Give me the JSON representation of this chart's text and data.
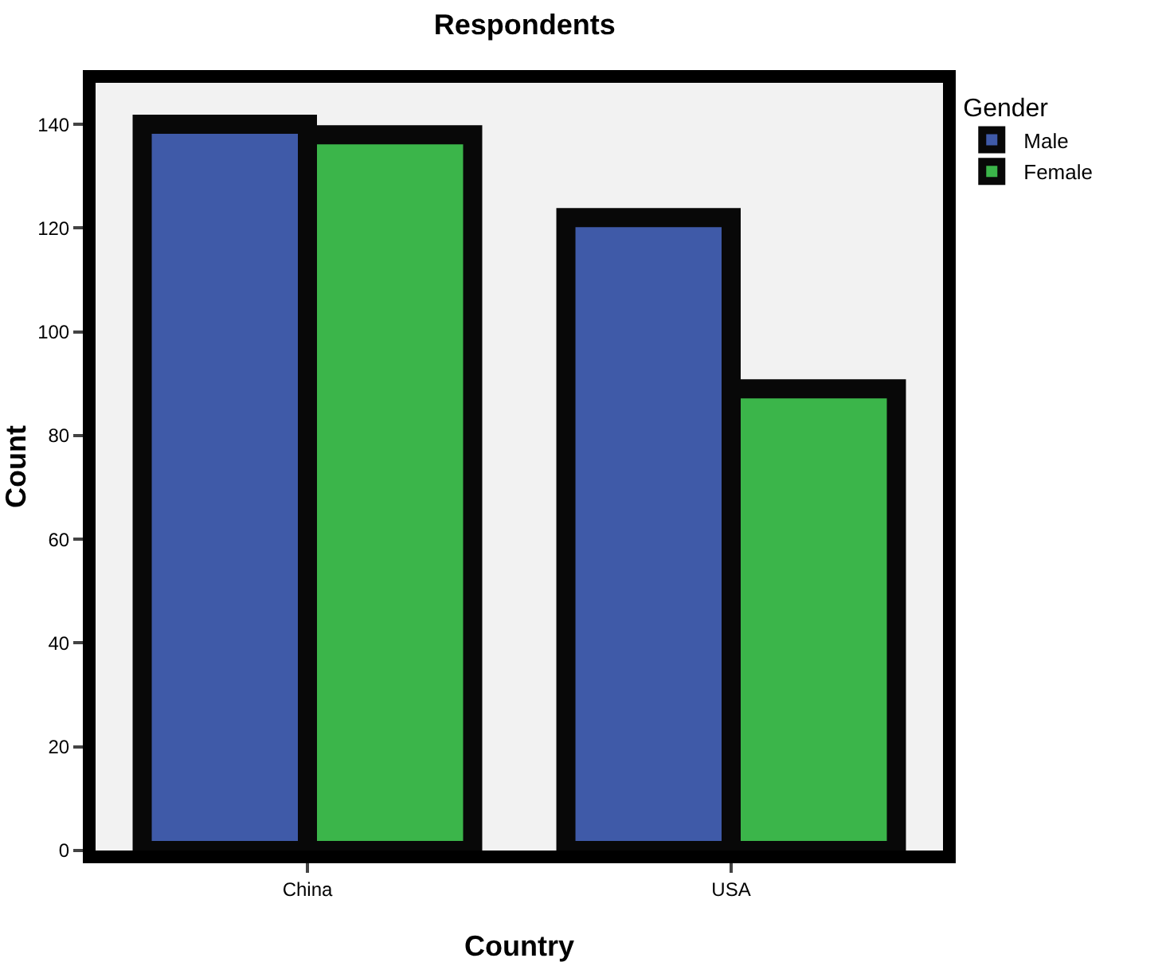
{
  "chart_data": {
    "type": "bar",
    "title": "Respondents",
    "xlabel": "Country",
    "ylabel": "Count",
    "legend_title": "Gender",
    "categories": [
      "China",
      "USA"
    ],
    "series": [
      {
        "name": "Male",
        "color": "#3f5aa8",
        "values": [
          140,
          122
        ]
      },
      {
        "name": "Female",
        "color": "#3bb54a",
        "values": [
          138,
          89
        ]
      }
    ],
    "ylim": [
      0,
      148
    ],
    "yticks": [
      0,
      20,
      40,
      60,
      80,
      100,
      120,
      140
    ],
    "grid": false,
    "legend": "top right"
  }
}
